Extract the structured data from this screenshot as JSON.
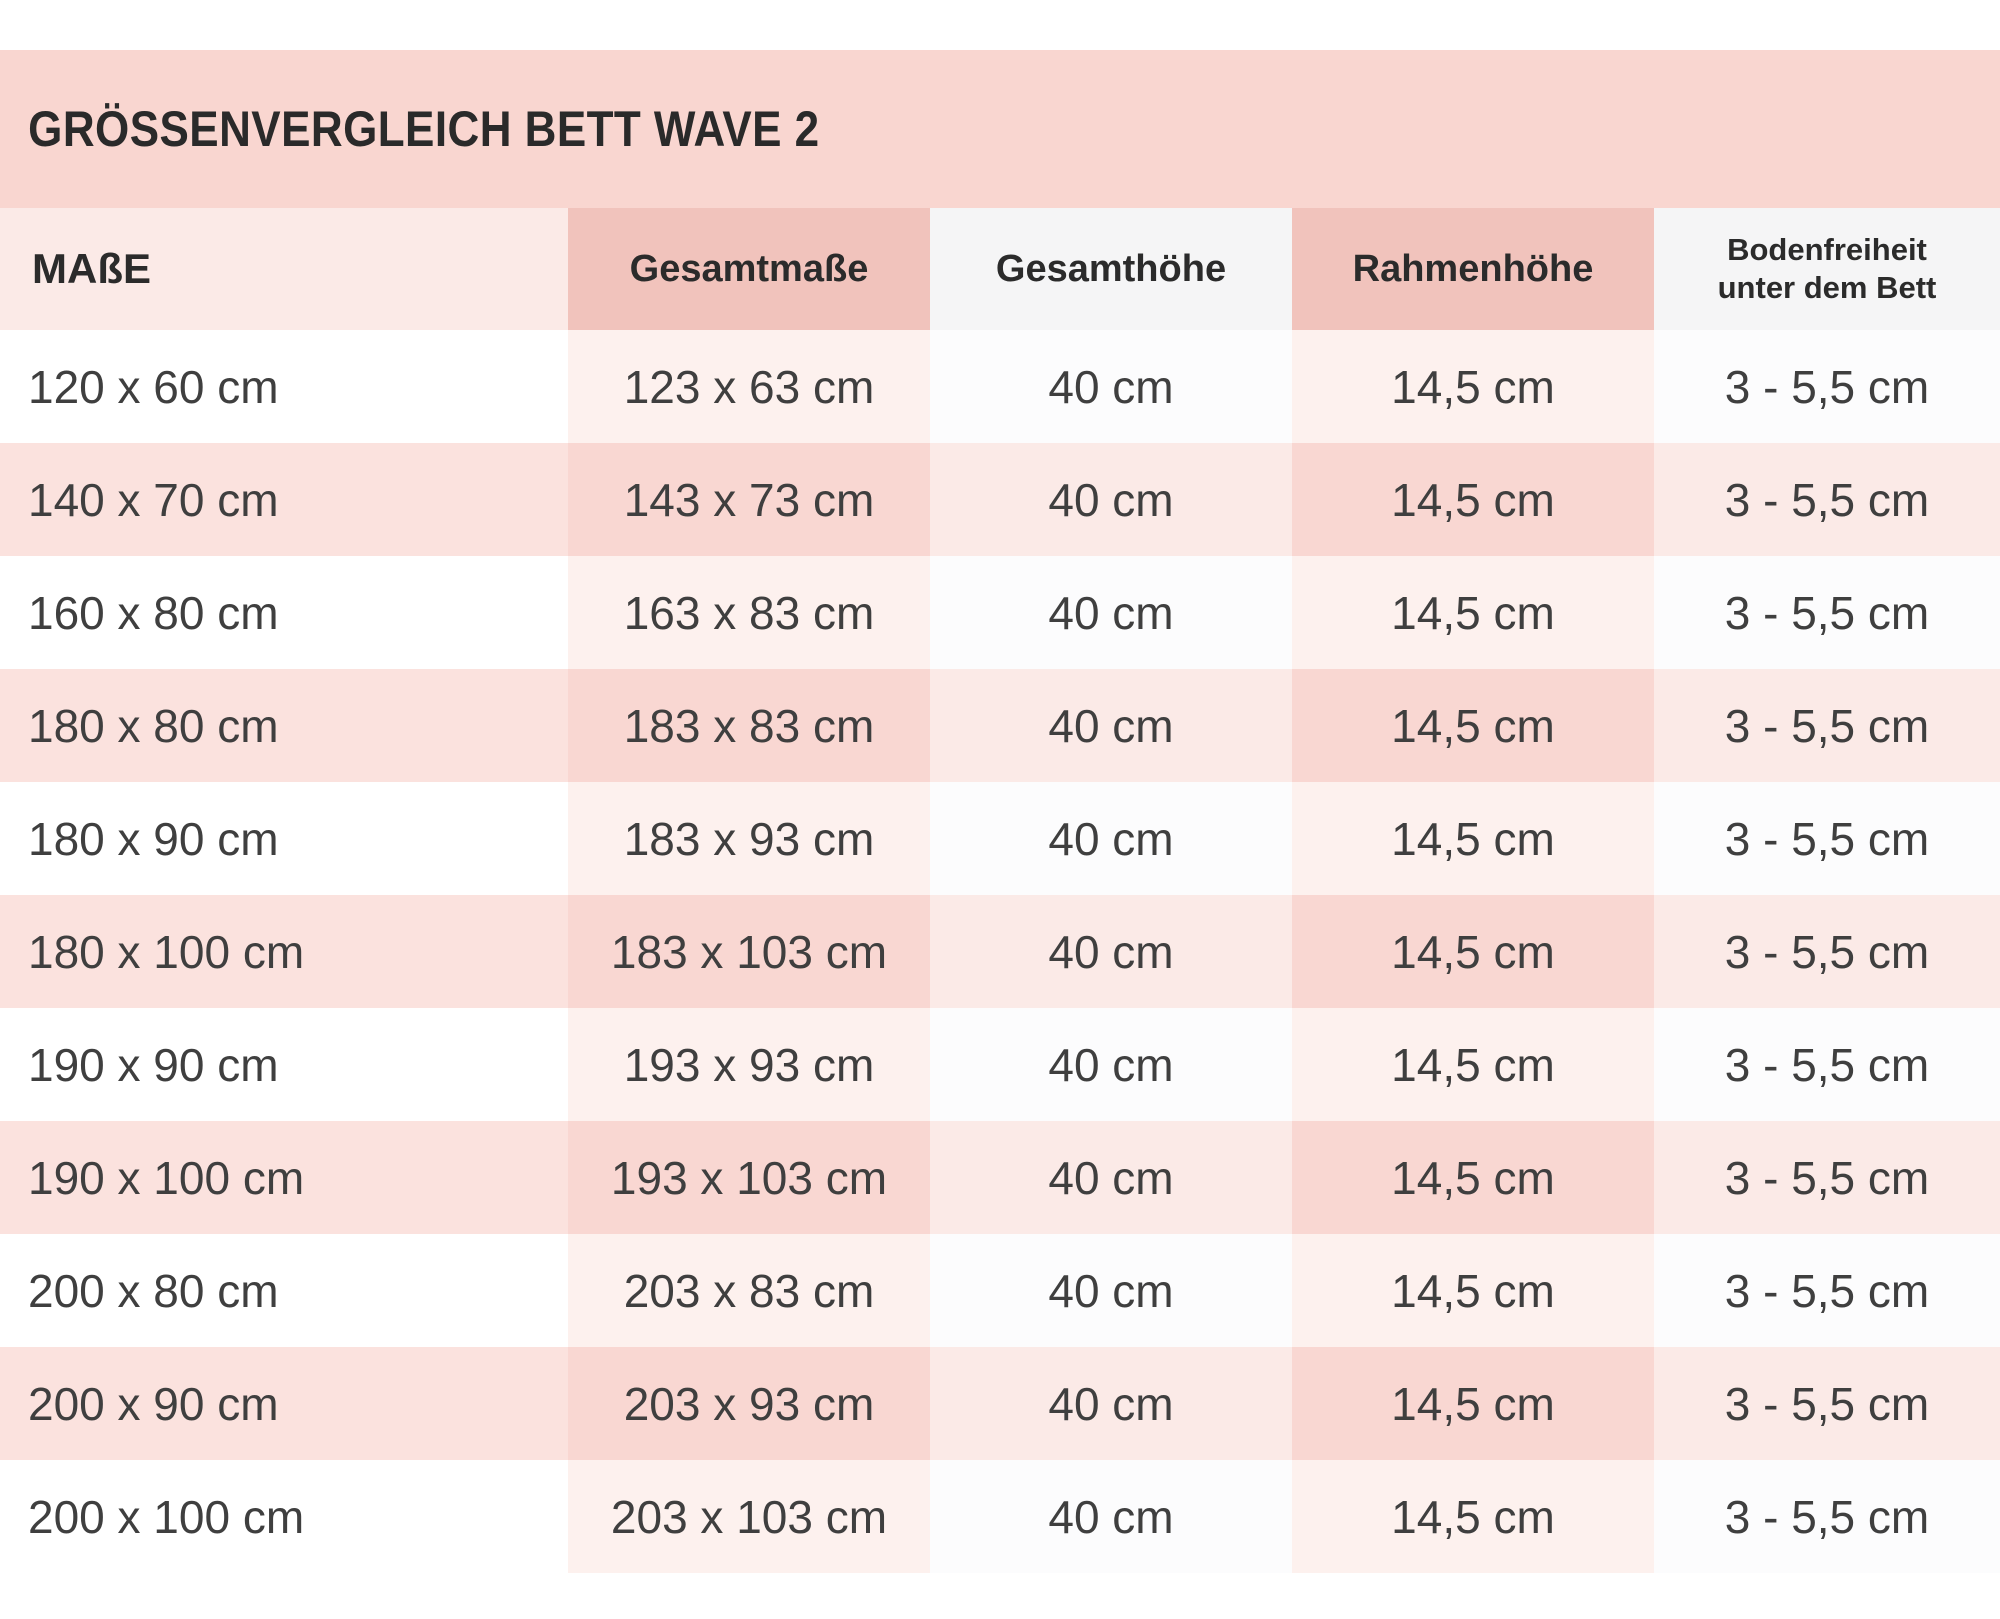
{
  "title": "GRÖSSENVERGLEICH BETT WAVE 2",
  "table": {
    "columns": [
      {
        "label": "MAßE"
      },
      {
        "label": "Gesamtmaße"
      },
      {
        "label": "Gesamthöhe"
      },
      {
        "label": "Rahmenhöhe"
      },
      {
        "label": "Bodenfreiheit unter dem Bett",
        "label_lines": [
          "Bodenfreiheit",
          "unter dem Bett"
        ]
      }
    ],
    "rows": [
      [
        "120 x 60 cm",
        "123 x 63 cm",
        "40 cm",
        "14,5 cm",
        "3 - 5,5 cm"
      ],
      [
        "140 x 70 cm",
        "143 x 73 cm",
        "40 cm",
        "14,5 cm",
        "3 - 5,5 cm"
      ],
      [
        "160 x 80 cm",
        "163 x 83 cm",
        "40 cm",
        "14,5 cm",
        "3 - 5,5 cm"
      ],
      [
        "180 x 80 cm",
        "183 x 83 cm",
        "40 cm",
        "14,5 cm",
        "3 - 5,5 cm"
      ],
      [
        "180 x 90 cm",
        "183 x 93 cm",
        "40 cm",
        "14,5 cm",
        "3 - 5,5 cm"
      ],
      [
        "180 x 100 cm",
        "183 x 103 cm",
        "40 cm",
        "14,5 cm",
        "3 - 5,5 cm"
      ],
      [
        "190 x 90 cm",
        "193 x 93 cm",
        "40 cm",
        "14,5 cm",
        "3 - 5,5 cm"
      ],
      [
        "190 x 100 cm",
        "193 x 103 cm",
        "40 cm",
        "14,5 cm",
        "3 - 5,5 cm"
      ],
      [
        "200 x 80 cm",
        "203 x 83 cm",
        "40 cm",
        "14,5 cm",
        "3 - 5,5 cm"
      ],
      [
        "200 x 90 cm",
        "203 x 93 cm",
        "40 cm",
        "14,5 cm",
        "3 - 5,5 cm"
      ],
      [
        "200 x 100 cm",
        "203 x 103 cm",
        "40 cm",
        "14,5 cm",
        "3 - 5,5 cm"
      ]
    ]
  },
  "colors": {
    "page_bg": "#ffffff",
    "title_bar_bg": "#f9d6d0",
    "header_cell_bgs": [
      "#fbeae7",
      "#f1c3bc",
      "#f5f5f6",
      "#f1c3bc",
      "#f5f5f6"
    ],
    "row_white_cell_bgs": [
      "#ffffff",
      "#fdf1ee",
      "#fcfcfd",
      "#fdf1ee",
      "#fcfcfd"
    ],
    "row_pink_cell_bgs": [
      "#fbe2de",
      "#f9d7d2",
      "#fbeae7",
      "#f9d7d2",
      "#fbeae7"
    ],
    "title_text": "#2a2a2a",
    "header_text": "#2b2b2b",
    "data_text": "#3f3f3f"
  }
}
